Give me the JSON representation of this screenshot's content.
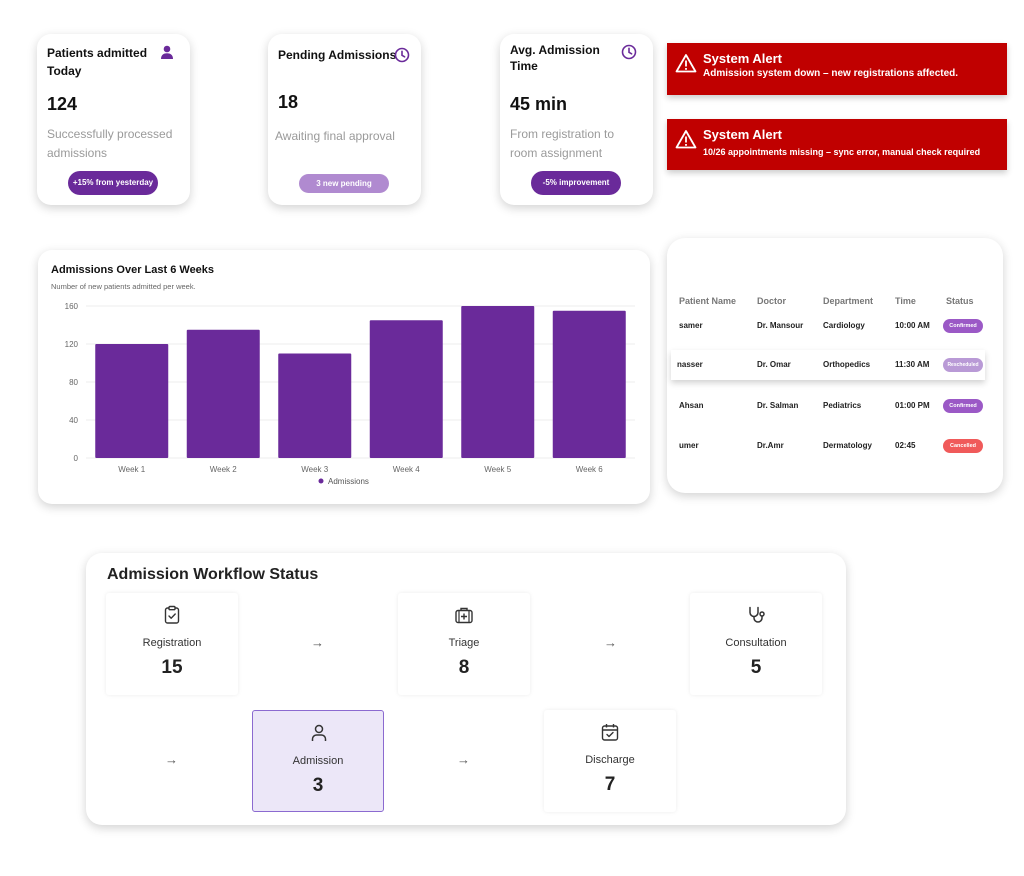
{
  "stats": [
    {
      "title": "Patients admitted Today",
      "icon": "user-icon",
      "value": "124",
      "subtitle": "Successfully processed admissions",
      "pill": "+15% from yesterday",
      "pill_color": "#6a2a9a"
    },
    {
      "title": "Pending Admissions",
      "icon": "clock-icon",
      "value": "18",
      "subtitle": "Awaiting final approval",
      "pill": "3 new pending",
      "pill_color": "#b08ad0"
    },
    {
      "title": "Avg. Admission Time",
      "icon": "clock-icon",
      "value": "45 min",
      "subtitle": "From registration to room assignment",
      "pill": "-5% improvement",
      "pill_color": "#6a2a9a"
    }
  ],
  "alerts": [
    {
      "title": "System Alert",
      "message": "Admission system down – new registrations affected.",
      "icon": "warning-icon"
    },
    {
      "title": "System Alert",
      "message": "10/26 appointments missing – sync error, manual check required",
      "icon": "warning-icon"
    }
  ],
  "chart": {
    "title": "Admissions Over Last 6 Weeks",
    "subtitle": "Number of new patients admitted per week.",
    "legend": "Admissions"
  },
  "chart_data": {
    "type": "bar",
    "title": "Admissions Over Last 6 Weeks",
    "subtitle": "Number of new patients admitted per week.",
    "categories": [
      "Week 1",
      "Week 2",
      "Week 3",
      "Week 4",
      "Week 5",
      "Week 6"
    ],
    "series": [
      {
        "name": "Admissions",
        "values": [
          120,
          135,
          110,
          145,
          160,
          155
        ]
      }
    ],
    "yticks": [
      "0",
      "40",
      "80",
      "120",
      "160"
    ],
    "ylim": [
      0,
      160
    ],
    "grid": true,
    "legend": "bottom",
    "color": "#6a2a9a"
  },
  "table": {
    "headers": [
      "Patient Name",
      "Doctor",
      "Department",
      "Time",
      "Status"
    ],
    "rows": [
      {
        "patient": "samer",
        "doctor": "Dr. Mansour",
        "department": "Cardiology",
        "time": "10:00 AM",
        "status": "Confirmed",
        "status_color": "#9b59c6"
      },
      {
        "patient": "nasser",
        "doctor": "Dr. Omar",
        "department": "Orthopedics",
        "time": "11:30 AM",
        "status": "Rescheduled",
        "status_color": "#b99ad6"
      },
      {
        "patient": "Ahsan",
        "doctor": "Dr. Salman",
        "department": "Pediatrics",
        "time": "01:00 PM",
        "status": "Confirmed",
        "status_color": "#9b59c6"
      },
      {
        "patient": "umer",
        "doctor": "Dr.Amr",
        "department": "Dermatology",
        "time": "02:45",
        "status": "Cancelled",
        "status_color": "#f05a5a"
      }
    ]
  },
  "workflow": {
    "title": "Admission Workflow Status",
    "arrow": "→",
    "steps": [
      {
        "label": "Registration",
        "count": "15",
        "icon": "clipboard-icon"
      },
      {
        "label": "Triage",
        "count": "8",
        "icon": "medical-kit-icon"
      },
      {
        "label": "Consultation",
        "count": "5",
        "icon": "stethoscope-icon"
      },
      {
        "label": "Admission",
        "count": "3",
        "icon": "user-icon",
        "active": true
      },
      {
        "label": "Discharge",
        "count": "7",
        "icon": "calendar-check-icon"
      }
    ]
  }
}
